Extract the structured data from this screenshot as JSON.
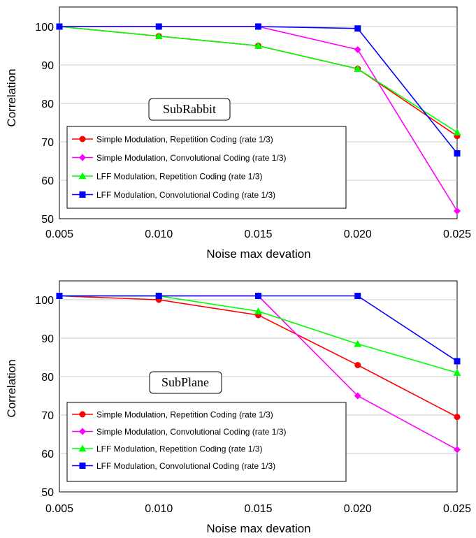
{
  "chart_data": [
    {
      "type": "line",
      "title": "SubRabbit",
      "xlabel": "Noise max devation",
      "ylabel": "Correlation",
      "categories": [
        "0.005",
        "0.010",
        "0.015",
        "0.020",
        "0.025"
      ],
      "ylim": [
        50,
        100
      ],
      "yticks": [
        "50",
        "60",
        "70",
        "80",
        "90",
        "100"
      ],
      "grid": "horizontal",
      "legend_position": "bottom-left",
      "series": [
        {
          "name": "Simple Modulation, Repetition Coding (rate 1/3)",
          "color": "#ff0000",
          "marker": "circle",
          "values": [
            100,
            97.5,
            95,
            89,
            71.5
          ]
        },
        {
          "name": "Simple Modulation, Convolutional Coding (rate 1/3)",
          "color": "#ff00ff",
          "marker": "diamond",
          "values": [
            100,
            100,
            100,
            94,
            52
          ]
        },
        {
          "name": "LFF Modulation, Repetition Coding (rate 1/3)",
          "color": "#00ff00",
          "marker": "triangle",
          "values": [
            100,
            97.5,
            95,
            89,
            72.5
          ]
        },
        {
          "name": "LFF Modulation, Convolutional Coding (rate 1/3)",
          "color": "#0000ff",
          "marker": "square",
          "values": [
            100,
            100,
            100,
            99.5,
            67
          ]
        }
      ]
    },
    {
      "type": "line",
      "title": "SubPlane",
      "xlabel": "Noise max devation",
      "ylabel": "Correlation",
      "categories": [
        "0.005",
        "0.010",
        "0.015",
        "0.020",
        "0.025"
      ],
      "ylim": [
        50,
        100
      ],
      "yticks": [
        "50",
        "60",
        "70",
        "80",
        "90",
        "100"
      ],
      "grid": "horizontal",
      "legend_position": "bottom-left",
      "series": [
        {
          "name": "Simple Modulation, Repetition Coding (rate 1/3)",
          "color": "#ff0000",
          "marker": "circle",
          "values": [
            101,
            100,
            96,
            83,
            69.5
          ]
        },
        {
          "name": "Simple Modulation, Convolutional Coding (rate 1/3)",
          "color": "#ff00ff",
          "marker": "diamond",
          "values": [
            101,
            101,
            101,
            75,
            61
          ]
        },
        {
          "name": "LFF Modulation, Repetition Coding (rate 1/3)",
          "color": "#00ff00",
          "marker": "triangle",
          "values": [
            101,
            101,
            97,
            88.5,
            81
          ]
        },
        {
          "name": "LFF Modulation, Convolutional Coding (rate 1/3)",
          "color": "#0000ff",
          "marker": "square",
          "values": [
            101,
            101,
            101,
            101,
            84
          ]
        }
      ]
    }
  ]
}
